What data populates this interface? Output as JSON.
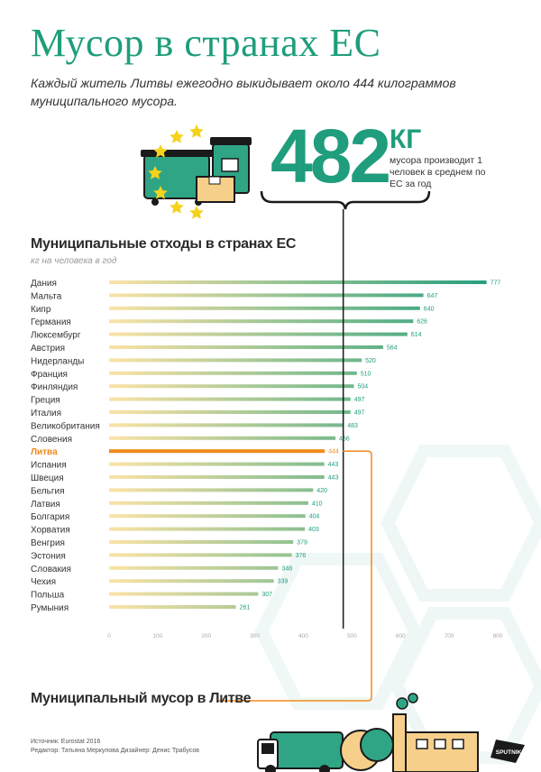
{
  "title": "Мусор в странах ЕС",
  "subtitle": "Каждый житель Литвы ежегодно выкидывает около 444 килограммов муниципального мусора.",
  "highlight": {
    "number": "482",
    "unit": "КГ",
    "description": "мусора производит 1 человек в среднем по ЕС за год"
  },
  "footer_title": "Муниципальный мусор в Литве",
  "source_line1": "Источник: Eurostat 2016",
  "source_line2": "Редактор: Татьяна Меркулова   Дизайнер: Денис Трабусов",
  "brand": "SPUTNIK",
  "colors": {
    "accent": "#1f9d7c",
    "highlight": "#f08a1c",
    "bar_start": "#fbe3a6",
    "bar_end": "#1f9d7c"
  },
  "chart_data": {
    "type": "bar",
    "orientation": "horizontal",
    "title": "Муниципальные отходы в странах ЕС",
    "subtitle": "кг на человека в год",
    "categories": [
      "Дания",
      "Мальта",
      "Кипр",
      "Германия",
      "Люксембург",
      "Австрия",
      "Нидерланды",
      "Франция",
      "Финляндия",
      "Греция",
      "Италия",
      "Великобритания",
      "Словения",
      "Литва",
      "Испания",
      "Швеция",
      "Бельгия",
      "Латвия",
      "Болгария",
      "Хорватия",
      "Венгрия",
      "Эстония",
      "Словакия",
      "Чехия",
      "Польша",
      "Румыния"
    ],
    "values": [
      777,
      647,
      640,
      626,
      614,
      564,
      520,
      510,
      504,
      497,
      497,
      483,
      466,
      444,
      443,
      443,
      420,
      410,
      404,
      403,
      379,
      376,
      348,
      339,
      307,
      261
    ],
    "highlighted_category": "Литва",
    "reference_line": 482,
    "xlim": [
      0,
      800
    ],
    "xticks": [
      0,
      100,
      200,
      300,
      400,
      500,
      600,
      700,
      800
    ],
    "grid": false,
    "legend": "none"
  }
}
